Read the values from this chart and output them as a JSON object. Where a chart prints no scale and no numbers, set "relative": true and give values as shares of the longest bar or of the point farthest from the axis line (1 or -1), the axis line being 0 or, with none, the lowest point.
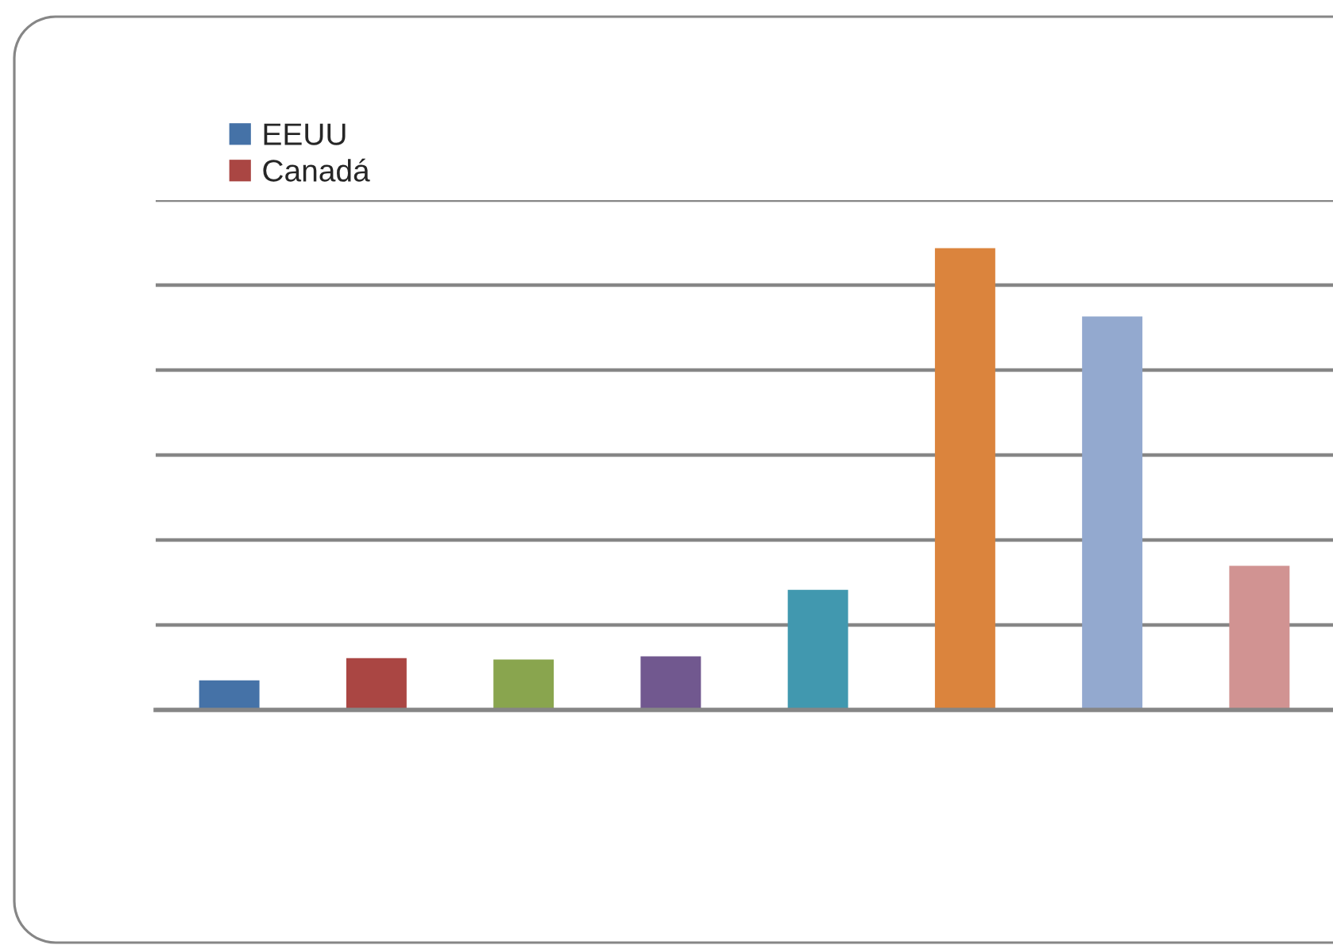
{
  "chart_data": {
    "type": "bar",
    "stacked": true,
    "relative": true,
    "grid": "y",
    "legend": "top left",
    "categories": [
      null,
      null,
      null,
      null,
      null,
      null,
      null,
      null
    ],
    "series": [
      {
        "name": "EEUU",
        "color": "#4572a7",
        "values": [
          0.064,
          null,
          null,
          null,
          null,
          null,
          null,
          null
        ]
      },
      {
        "name": "Canadá",
        "color": "#aa4643",
        "values": [
          null,
          0.112,
          null,
          null,
          null,
          null,
          null,
          null
        ]
      },
      {
        "color": "#89a54e",
        "values": [
          null,
          null,
          0.109,
          null,
          null,
          null,
          null,
          null
        ]
      },
      {
        "color": "#71588f",
        "values": [
          null,
          null,
          null,
          0.116,
          null,
          null,
          null,
          null
        ]
      },
      {
        "color": "#4198af",
        "values": [
          null,
          null,
          null,
          null,
          0.26,
          null,
          null,
          null
        ]
      },
      {
        "color": "#db843d",
        "values": [
          null,
          null,
          null,
          null,
          null,
          1,
          null,
          null
        ]
      },
      {
        "color": "#93a9cf",
        "values": [
          null,
          null,
          null,
          null,
          null,
          null,
          0.852,
          null
        ]
      },
      {
        "color": "#d19392",
        "values": [
          null,
          null,
          null,
          null,
          null,
          null,
          null,
          0.312
        ]
      }
    ]
  }
}
